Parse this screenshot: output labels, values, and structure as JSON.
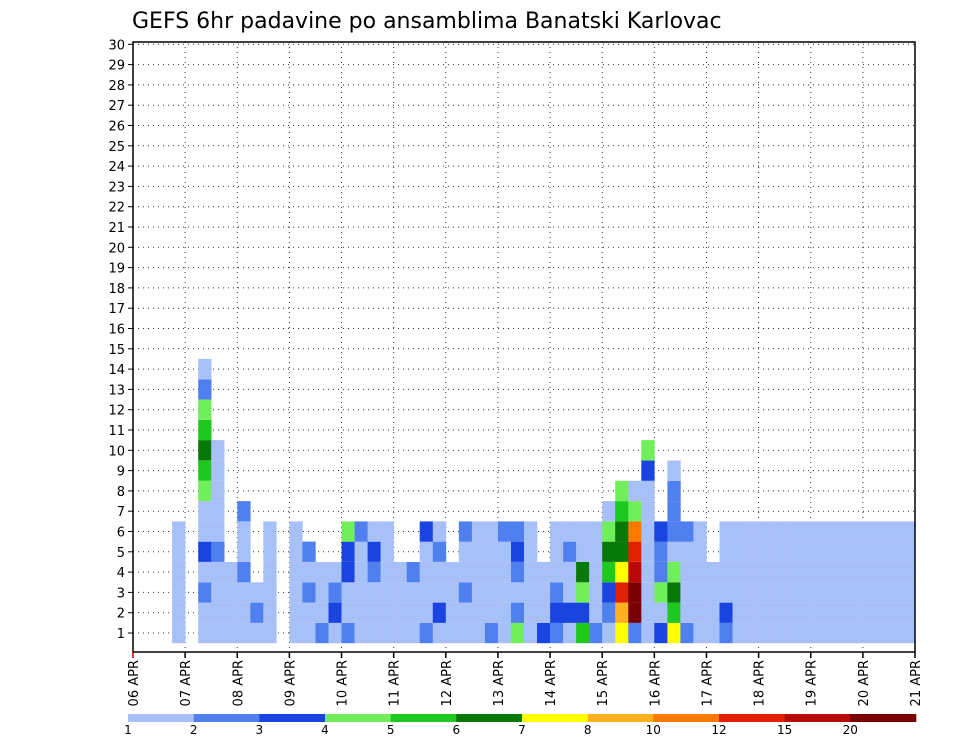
{
  "chart_data": {
    "type": "heatmap",
    "title": "GEFS 6hr padavine po ansamblima Banatski Karlovac",
    "x_ticks": [
      "06 APR",
      "07 APR",
      "08 APR",
      "09 APR",
      "10 APR",
      "11 APR",
      "12 APR",
      "13 APR",
      "14 APR",
      "15 APR",
      "16 APR",
      "17 APR",
      "18 APR",
      "19 APR",
      "20 APR",
      "21 APR"
    ],
    "y_ticks": [
      "1",
      "2",
      "3",
      "4",
      "5",
      "6",
      "7",
      "8",
      "9",
      "10",
      "11",
      "12",
      "13",
      "14",
      "15",
      "16",
      "17",
      "18",
      "19",
      "20",
      "21",
      "22",
      "23",
      "24",
      "25",
      "26",
      "27",
      "28",
      "29",
      "30"
    ],
    "y_range": [
      1,
      30
    ],
    "grid": true,
    "legend_position": "bottom",
    "legend": {
      "labels": [
        "1",
        "2",
        "3",
        "4",
        "5",
        "6",
        "7",
        "8",
        "10",
        "12",
        "15",
        "20"
      ],
      "colors": [
        "#a8c0f8",
        "#5080f0",
        "#1a44e0",
        "#70ef5a",
        "#1ec81e",
        "#087808",
        "#ffff00",
        "#ffb020",
        "#ff7800",
        "#e02000",
        "#b80808",
        "#780000"
      ]
    },
    "x_axis_note": "x values are hours since 06 APR 00Z (6-hour steps)",
    "cells": [
      [
        18,
        1,
        0
      ],
      [
        18,
        2,
        0
      ],
      [
        18,
        3,
        0
      ],
      [
        18,
        4,
        0
      ],
      [
        18,
        5,
        0
      ],
      [
        18,
        6,
        0
      ],
      [
        30,
        1,
        0
      ],
      [
        30,
        2,
        0
      ],
      [
        30,
        3,
        1
      ],
      [
        30,
        4,
        0
      ],
      [
        30,
        5,
        2
      ],
      [
        30,
        6,
        0
      ],
      [
        30,
        7,
        0
      ],
      [
        30,
        8,
        3
      ],
      [
        30,
        9,
        4
      ],
      [
        30,
        10,
        5
      ],
      [
        30,
        11,
        4
      ],
      [
        30,
        12,
        3
      ],
      [
        30,
        13,
        1
      ],
      [
        30,
        14,
        0
      ],
      [
        36,
        1,
        0
      ],
      [
        36,
        2,
        0
      ],
      [
        36,
        3,
        0
      ],
      [
        36,
        4,
        0
      ],
      [
        36,
        5,
        1
      ],
      [
        36,
        6,
        0
      ],
      [
        36,
        7,
        0
      ],
      [
        36,
        8,
        0
      ],
      [
        36,
        9,
        0
      ],
      [
        36,
        10,
        0
      ],
      [
        42,
        1,
        0
      ],
      [
        42,
        2,
        0
      ],
      [
        42,
        3,
        0
      ],
      [
        42,
        4,
        0
      ],
      [
        48,
        1,
        0
      ],
      [
        48,
        2,
        0
      ],
      [
        48,
        3,
        0
      ],
      [
        48,
        4,
        1
      ],
      [
        48,
        5,
        0
      ],
      [
        48,
        6,
        0
      ],
      [
        48,
        7,
        1
      ],
      [
        54,
        1,
        0
      ],
      [
        54,
        2,
        1
      ],
      [
        54,
        3,
        0
      ],
      [
        60,
        1,
        0
      ],
      [
        60,
        2,
        0
      ],
      [
        60,
        3,
        0
      ],
      [
        60,
        4,
        0
      ],
      [
        60,
        5,
        0
      ],
      [
        60,
        6,
        0
      ],
      [
        72,
        1,
        0
      ],
      [
        72,
        2,
        0
      ],
      [
        72,
        3,
        0
      ],
      [
        72,
        4,
        0
      ],
      [
        72,
        5,
        0
      ],
      [
        72,
        6,
        0
      ],
      [
        78,
        1,
        0
      ],
      [
        78,
        2,
        0
      ],
      [
        78,
        3,
        1
      ],
      [
        78,
        4,
        0
      ],
      [
        78,
        5,
        1
      ],
      [
        84,
        1,
        1
      ],
      [
        84,
        2,
        0
      ],
      [
        84,
        3,
        0
      ],
      [
        84,
        4,
        0
      ],
      [
        90,
        1,
        0
      ],
      [
        90,
        2,
        2
      ],
      [
        90,
        3,
        1
      ],
      [
        90,
        4,
        0
      ],
      [
        96,
        1,
        1
      ],
      [
        96,
        2,
        0
      ],
      [
        96,
        3,
        0
      ],
      [
        96,
        4,
        2
      ],
      [
        96,
        5,
        2
      ],
      [
        96,
        6,
        3
      ],
      [
        102,
        1,
        0
      ],
      [
        102,
        2,
        0
      ],
      [
        102,
        3,
        0
      ],
      [
        102,
        4,
        0
      ],
      [
        102,
        5,
        0
      ],
      [
        102,
        6,
        1
      ],
      [
        108,
        1,
        0
      ],
      [
        108,
        2,
        0
      ],
      [
        108,
        3,
        0
      ],
      [
        108,
        4,
        1
      ],
      [
        108,
        5,
        2
      ],
      [
        108,
        6,
        0
      ],
      [
        114,
        1,
        0
      ],
      [
        114,
        2,
        0
      ],
      [
        114,
        3,
        0
      ],
      [
        114,
        4,
        0
      ],
      [
        114,
        5,
        0
      ],
      [
        114,
        6,
        0
      ],
      [
        120,
        1,
        0
      ],
      [
        120,
        2,
        0
      ],
      [
        120,
        3,
        0
      ],
      [
        120,
        4,
        0
      ],
      [
        126,
        1,
        0
      ],
      [
        126,
        2,
        0
      ],
      [
        126,
        3,
        0
      ],
      [
        126,
        4,
        1
      ],
      [
        132,
        1,
        1
      ],
      [
        132,
        2,
        0
      ],
      [
        132,
        3,
        0
      ],
      [
        132,
        4,
        0
      ],
      [
        132,
        5,
        0
      ],
      [
        132,
        6,
        2
      ],
      [
        138,
        1,
        0
      ],
      [
        138,
        2,
        2
      ],
      [
        138,
        3,
        0
      ],
      [
        138,
        4,
        0
      ],
      [
        138,
        5,
        1
      ],
      [
        138,
        6,
        0
      ],
      [
        144,
        1,
        0
      ],
      [
        144,
        2,
        0
      ],
      [
        144,
        3,
        0
      ],
      [
        144,
        4,
        0
      ],
      [
        150,
        1,
        0
      ],
      [
        150,
        2,
        0
      ],
      [
        150,
        3,
        1
      ],
      [
        150,
        4,
        0
      ],
      [
        150,
        5,
        0
      ],
      [
        150,
        6,
        1
      ],
      [
        156,
        1,
        0
      ],
      [
        156,
        2,
        0
      ],
      [
        156,
        3,
        0
      ],
      [
        156,
        4,
        0
      ],
      [
        156,
        5,
        0
      ],
      [
        156,
        6,
        0
      ],
      [
        162,
        1,
        1
      ],
      [
        162,
        2,
        0
      ],
      [
        162,
        3,
        0
      ],
      [
        162,
        4,
        0
      ],
      [
        162,
        5,
        0
      ],
      [
        162,
        6,
        0
      ],
      [
        168,
        1,
        0
      ],
      [
        168,
        2,
        0
      ],
      [
        168,
        3,
        0
      ],
      [
        168,
        4,
        0
      ],
      [
        168,
        5,
        0
      ],
      [
        168,
        6,
        1
      ],
      [
        174,
        1,
        3
      ],
      [
        174,
        2,
        1
      ],
      [
        174,
        3,
        0
      ],
      [
        174,
        4,
        1
      ],
      [
        174,
        5,
        2
      ],
      [
        174,
        6,
        1
      ],
      [
        180,
        1,
        0
      ],
      [
        180,
        2,
        0
      ],
      [
        180,
        3,
        0
      ],
      [
        180,
        4,
        0
      ],
      [
        180,
        5,
        0
      ],
      [
        180,
        6,
        0
      ],
      [
        186,
        1,
        2
      ],
      [
        186,
        2,
        0
      ],
      [
        186,
        3,
        0
      ],
      [
        186,
        4,
        0
      ],
      [
        192,
        1,
        1
      ],
      [
        192,
        2,
        2
      ],
      [
        192,
        3,
        1
      ],
      [
        192,
        4,
        0
      ],
      [
        192,
        5,
        0
      ],
      [
        192,
        6,
        0
      ],
      [
        198,
        1,
        0
      ],
      [
        198,
        2,
        2
      ],
      [
        198,
        3,
        0
      ],
      [
        198,
        4,
        0
      ],
      [
        198,
        5,
        1
      ],
      [
        198,
        6,
        0
      ],
      [
        204,
        1,
        4
      ],
      [
        204,
        2,
        2
      ],
      [
        204,
        3,
        3
      ],
      [
        204,
        4,
        5
      ],
      [
        204,
        5,
        0
      ],
      [
        204,
        6,
        0
      ],
      [
        210,
        1,
        1
      ],
      [
        210,
        2,
        0
      ],
      [
        210,
        3,
        0
      ],
      [
        210,
        4,
        0
      ],
      [
        210,
        5,
        0
      ],
      [
        210,
        6,
        0
      ],
      [
        216,
        1,
        0
      ],
      [
        216,
        2,
        1
      ],
      [
        216,
        3,
        2
      ],
      [
        216,
        4,
        4
      ],
      [
        216,
        5,
        5
      ],
      [
        216,
        6,
        3
      ],
      [
        216,
        7,
        0
      ],
      [
        222,
        1,
        6
      ],
      [
        222,
        2,
        7
      ],
      [
        222,
        3,
        9
      ],
      [
        222,
        4,
        6
      ],
      [
        222,
        5,
        5
      ],
      [
        222,
        6,
        5
      ],
      [
        222,
        7,
        4
      ],
      [
        222,
        8,
        3
      ],
      [
        228,
        1,
        1
      ],
      [
        228,
        2,
        11
      ],
      [
        228,
        3,
        11
      ],
      [
        228,
        4,
        10
      ],
      [
        228,
        5,
        9
      ],
      [
        228,
        6,
        8
      ],
      [
        228,
        7,
        3
      ],
      [
        228,
        8,
        0
      ],
      [
        234,
        1,
        0
      ],
      [
        234,
        2,
        0
      ],
      [
        234,
        3,
        0
      ],
      [
        234,
        4,
        0
      ],
      [
        234,
        5,
        0
      ],
      [
        234,
        6,
        0
      ],
      [
        234,
        7,
        0
      ],
      [
        234,
        8,
        0
      ],
      [
        234,
        9,
        2
      ],
      [
        234,
        10,
        3
      ],
      [
        240,
        1,
        2
      ],
      [
        240,
        2,
        0
      ],
      [
        240,
        3,
        3
      ],
      [
        240,
        4,
        1
      ],
      [
        240,
        5,
        1
      ],
      [
        240,
        6,
        2
      ],
      [
        246,
        1,
        6
      ],
      [
        246,
        2,
        4
      ],
      [
        246,
        3,
        5
      ],
      [
        246,
        4,
        3
      ],
      [
        246,
        5,
        0
      ],
      [
        246,
        6,
        1
      ],
      [
        246,
        7,
        1
      ],
      [
        246,
        8,
        1
      ],
      [
        246,
        9,
        0
      ],
      [
        252,
        1,
        1
      ],
      [
        252,
        2,
        0
      ],
      [
        252,
        3,
        0
      ],
      [
        252,
        4,
        0
      ],
      [
        252,
        5,
        0
      ],
      [
        252,
        6,
        1
      ],
      [
        258,
        1,
        0
      ],
      [
        258,
        2,
        0
      ],
      [
        258,
        3,
        0
      ],
      [
        258,
        4,
        0
      ],
      [
        258,
        5,
        0
      ],
      [
        258,
        6,
        0
      ],
      [
        264,
        1,
        0
      ],
      [
        264,
        2,
        0
      ],
      [
        264,
        3,
        0
      ],
      [
        264,
        4,
        0
      ],
      [
        270,
        1,
        1
      ],
      [
        270,
        2,
        2
      ],
      [
        270,
        3,
        0
      ],
      [
        270,
        4,
        0
      ],
      [
        270,
        5,
        0
      ],
      [
        270,
        6,
        0
      ],
      [
        276,
        1,
        0
      ],
      [
        276,
        2,
        0
      ],
      [
        276,
        3,
        0
      ],
      [
        276,
        4,
        0
      ],
      [
        276,
        5,
        0
      ],
      [
        276,
        6,
        0
      ],
      [
        282,
        1,
        0
      ],
      [
        282,
        2,
        0
      ],
      [
        282,
        3,
        0
      ],
      [
        282,
        4,
        0
      ],
      [
        282,
        5,
        0
      ],
      [
        282,
        6,
        0
      ],
      [
        288,
        1,
        0
      ],
      [
        288,
        2,
        0
      ],
      [
        288,
        3,
        0
      ],
      [
        288,
        4,
        0
      ],
      [
        288,
        5,
        0
      ],
      [
        288,
        6,
        0
      ],
      [
        294,
        1,
        0
      ],
      [
        294,
        2,
        0
      ],
      [
        294,
        3,
        0
      ],
      [
        294,
        4,
        0
      ],
      [
        294,
        5,
        0
      ],
      [
        294,
        6,
        0
      ],
      [
        300,
        1,
        0
      ],
      [
        300,
        2,
        0
      ],
      [
        300,
        3,
        0
      ],
      [
        300,
        4,
        0
      ],
      [
        300,
        5,
        0
      ],
      [
        300,
        6,
        0
      ],
      [
        306,
        1,
        0
      ],
      [
        306,
        2,
        0
      ],
      [
        306,
        3,
        0
      ],
      [
        306,
        4,
        0
      ],
      [
        306,
        5,
        0
      ],
      [
        306,
        6,
        0
      ],
      [
        312,
        1,
        0
      ],
      [
        312,
        2,
        0
      ],
      [
        312,
        3,
        0
      ],
      [
        312,
        4,
        0
      ],
      [
        312,
        5,
        0
      ],
      [
        312,
        6,
        0
      ],
      [
        318,
        1,
        0
      ],
      [
        318,
        2,
        0
      ],
      [
        318,
        3,
        0
      ],
      [
        318,
        4,
        0
      ],
      [
        318,
        5,
        0
      ],
      [
        318,
        6,
        0
      ],
      [
        324,
        1,
        0
      ],
      [
        324,
        2,
        0
      ],
      [
        324,
        3,
        0
      ],
      [
        324,
        4,
        0
      ],
      [
        324,
        5,
        0
      ],
      [
        324,
        6,
        0
      ],
      [
        330,
        1,
        0
      ],
      [
        330,
        2,
        0
      ],
      [
        330,
        3,
        0
      ],
      [
        330,
        4,
        0
      ],
      [
        330,
        5,
        0
      ],
      [
        330,
        6,
        0
      ],
      [
        336,
        1,
        0
      ],
      [
        336,
        2,
        0
      ],
      [
        336,
        3,
        0
      ],
      [
        336,
        4,
        0
      ],
      [
        336,
        5,
        0
      ],
      [
        336,
        6,
        0
      ],
      [
        342,
        1,
        0
      ],
      [
        342,
        2,
        0
      ],
      [
        342,
        3,
        0
      ],
      [
        342,
        4,
        0
      ],
      [
        342,
        5,
        0
      ],
      [
        342,
        6,
        0
      ],
      [
        348,
        1,
        0
      ],
      [
        348,
        2,
        0
      ],
      [
        348,
        3,
        0
      ],
      [
        348,
        4,
        0
      ],
      [
        348,
        5,
        0
      ],
      [
        348,
        6,
        0
      ],
      [
        354,
        1,
        0
      ],
      [
        354,
        2,
        0
      ],
      [
        354,
        3,
        0
      ],
      [
        354,
        4,
        0
      ],
      [
        354,
        5,
        0
      ],
      [
        354,
        6,
        0
      ],
      [
        360,
        1,
        0
      ],
      [
        360,
        2,
        0
      ],
      [
        360,
        3,
        0
      ],
      [
        360,
        4,
        0
      ],
      [
        360,
        5,
        0
      ],
      [
        360,
        6,
        0
      ]
    ]
  }
}
